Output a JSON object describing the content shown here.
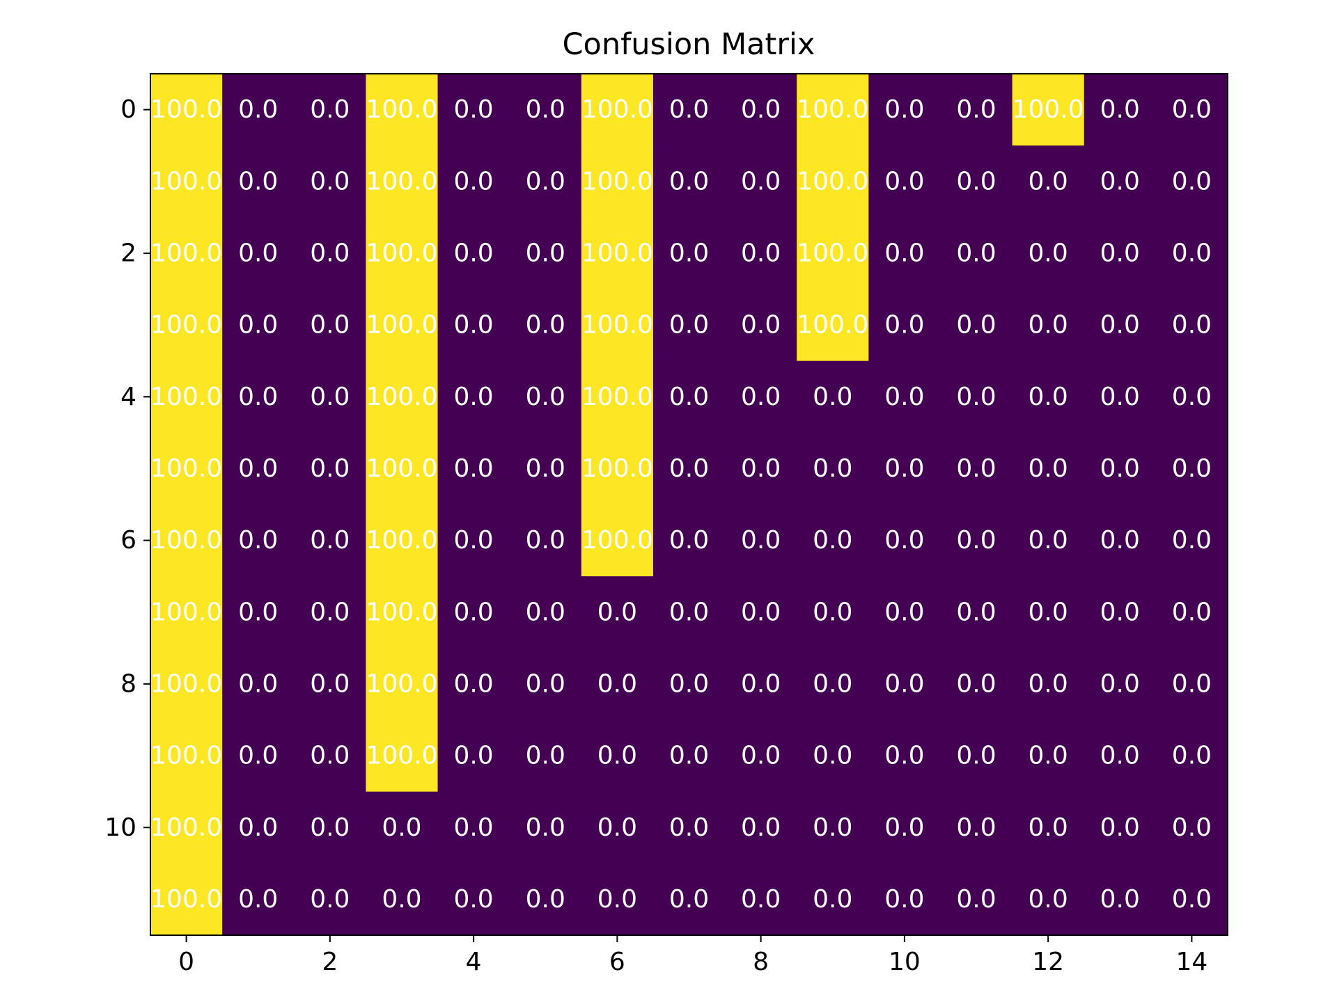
{
  "chart_data": {
    "type": "heatmap",
    "title": "Confusion Matrix",
    "xlabel": "",
    "ylabel": "",
    "rows": 12,
    "cols": 15,
    "x_ticks": [
      0,
      2,
      4,
      6,
      8,
      10,
      12,
      14
    ],
    "y_ticks": [
      0,
      2,
      4,
      6,
      8,
      10
    ],
    "xlim": [
      -0.5,
      14.5
    ],
    "ylim": [
      11.5,
      -0.5
    ],
    "value_format": "one decimal",
    "colormap": "viridis",
    "colors": {
      "low": "#440154",
      "high": "#fde725",
      "cell_text": "#ffffff"
    },
    "values": [
      [
        100.0,
        0.0,
        0.0,
        100.0,
        0.0,
        0.0,
        100.0,
        0.0,
        0.0,
        100.0,
        0.0,
        0.0,
        100.0,
        0.0,
        0.0
      ],
      [
        100.0,
        0.0,
        0.0,
        100.0,
        0.0,
        0.0,
        100.0,
        0.0,
        0.0,
        100.0,
        0.0,
        0.0,
        0.0,
        0.0,
        0.0
      ],
      [
        100.0,
        0.0,
        0.0,
        100.0,
        0.0,
        0.0,
        100.0,
        0.0,
        0.0,
        100.0,
        0.0,
        0.0,
        0.0,
        0.0,
        0.0
      ],
      [
        100.0,
        0.0,
        0.0,
        100.0,
        0.0,
        0.0,
        100.0,
        0.0,
        0.0,
        100.0,
        0.0,
        0.0,
        0.0,
        0.0,
        0.0
      ],
      [
        100.0,
        0.0,
        0.0,
        100.0,
        0.0,
        0.0,
        100.0,
        0.0,
        0.0,
        0.0,
        0.0,
        0.0,
        0.0,
        0.0,
        0.0
      ],
      [
        100.0,
        0.0,
        0.0,
        100.0,
        0.0,
        0.0,
        100.0,
        0.0,
        0.0,
        0.0,
        0.0,
        0.0,
        0.0,
        0.0,
        0.0
      ],
      [
        100.0,
        0.0,
        0.0,
        100.0,
        0.0,
        0.0,
        100.0,
        0.0,
        0.0,
        0.0,
        0.0,
        0.0,
        0.0,
        0.0,
        0.0
      ],
      [
        100.0,
        0.0,
        0.0,
        100.0,
        0.0,
        0.0,
        0.0,
        0.0,
        0.0,
        0.0,
        0.0,
        0.0,
        0.0,
        0.0,
        0.0
      ],
      [
        100.0,
        0.0,
        0.0,
        100.0,
        0.0,
        0.0,
        0.0,
        0.0,
        0.0,
        0.0,
        0.0,
        0.0,
        0.0,
        0.0,
        0.0
      ],
      [
        100.0,
        0.0,
        0.0,
        100.0,
        0.0,
        0.0,
        0.0,
        0.0,
        0.0,
        0.0,
        0.0,
        0.0,
        0.0,
        0.0,
        0.0
      ],
      [
        100.0,
        0.0,
        0.0,
        0.0,
        0.0,
        0.0,
        0.0,
        0.0,
        0.0,
        0.0,
        0.0,
        0.0,
        0.0,
        0.0,
        0.0
      ],
      [
        100.0,
        0.0,
        0.0,
        0.0,
        0.0,
        0.0,
        0.0,
        0.0,
        0.0,
        0.0,
        0.0,
        0.0,
        0.0,
        0.0,
        0.0
      ]
    ]
  }
}
